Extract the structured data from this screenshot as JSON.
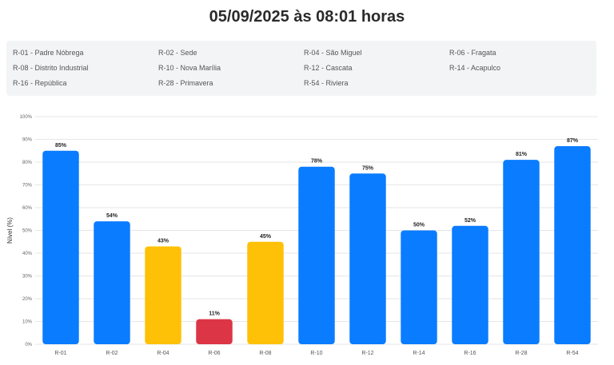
{
  "title": "05/09/2025 às 08:01 horas",
  "legend": [
    "R-01 - Padre Nóbrega",
    "R-02 - Sede",
    "R-04 - São Miguel",
    "R-06 - Fragata",
    "R-08 - Distrito Industrial",
    "R-10 - Nova Marília",
    "R-12 - Cascata",
    "R-14 - Acapulco",
    "R-16 - República",
    "R-28 - Primavera",
    "R-54 - Riviera"
  ],
  "colors": {
    "blue": "#0a7cff",
    "yellow": "#ffc107",
    "red": "#dc3545",
    "grid": "#e6e6e6"
  },
  "chart_data": {
    "type": "bar",
    "categories": [
      "R-01",
      "R-02",
      "R-04",
      "R-06",
      "R-08",
      "R-10",
      "R-12",
      "R-14",
      "R-16",
      "R-28",
      "R-54"
    ],
    "values": [
      85,
      54,
      43,
      11,
      45,
      78,
      75,
      50,
      52,
      81,
      87
    ],
    "data_labels": [
      "85%",
      "54%",
      "43%",
      "11%",
      "45%",
      "78%",
      "75%",
      "50%",
      "52%",
      "81%",
      "87%"
    ],
    "bar_colors": [
      "blue",
      "blue",
      "yellow",
      "red",
      "yellow",
      "blue",
      "blue",
      "blue",
      "blue",
      "blue",
      "blue"
    ],
    "ylabel": "Nível (%)",
    "ylim": [
      0,
      100
    ],
    "yticks": [
      "0%",
      "10%",
      "20%",
      "30%",
      "40%",
      "50%",
      "60%",
      "70%",
      "80%",
      "90%",
      "100%"
    ],
    "grid": true
  }
}
